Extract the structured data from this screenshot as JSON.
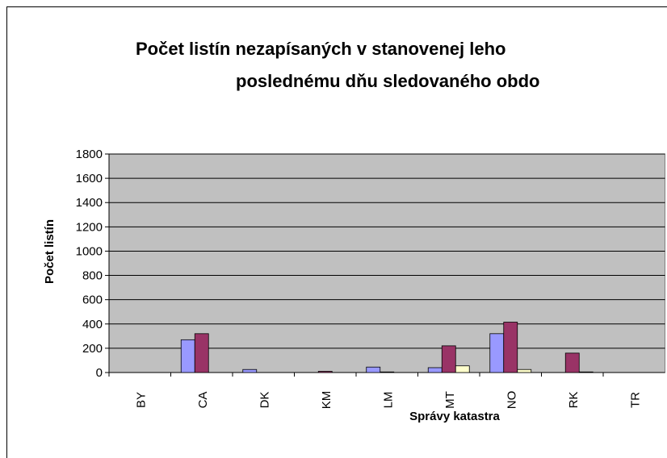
{
  "chart_data": {
    "type": "bar",
    "title": [
      "Počet listín nezapísaných v stanovenej leho",
      "poslednému dňu sledovaného obdo"
    ],
    "y_label": "Počet listín",
    "x_label": "Správy katastra",
    "categories": [
      "BY",
      "CA",
      "DK",
      "KM",
      "LM",
      "MT",
      "NO",
      "RK",
      "TR"
    ],
    "series": [
      {
        "color": "#9999ff",
        "values": [
          0,
          270,
          25,
          0,
          45,
          40,
          320,
          0,
          0
        ]
      },
      {
        "color": "#993366",
        "values": [
          0,
          320,
          0,
          10,
          5,
          220,
          415,
          160,
          0
        ]
      },
      {
        "color": "#ffffcc",
        "values": [
          0,
          0,
          0,
          0,
          0,
          55,
          25,
          5,
          0
        ]
      }
    ],
    "ylim": [
      0,
      1800
    ],
    "yticks": [
      0,
      200,
      400,
      600,
      800,
      1000,
      1200,
      1400,
      1600,
      1800
    ],
    "grid": true,
    "plot_background": "#c0c0c0"
  }
}
